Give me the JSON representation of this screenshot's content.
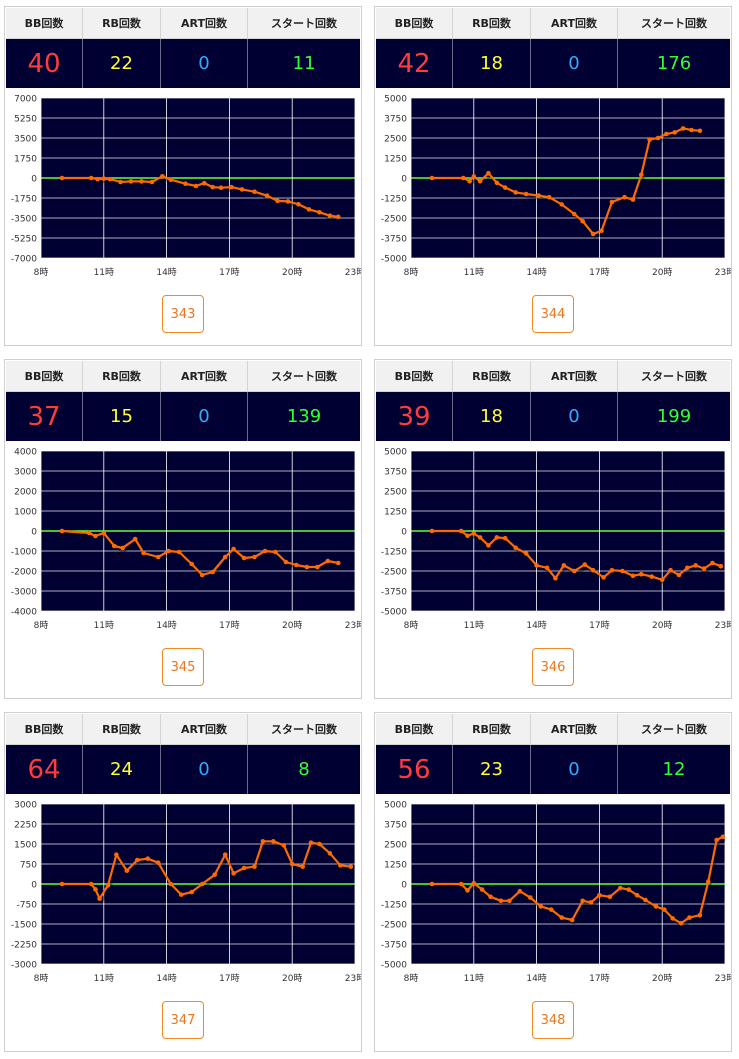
{
  "headers": {
    "bb": "BB回数",
    "rb": "RB回数",
    "art": "ART回数",
    "start": "スタート回数"
  },
  "colors": {
    "plot_bg": "#000033",
    "line": "#ff6a00",
    "zero": "#66ff33",
    "grid": "#ffffff"
  },
  "machines": [
    {
      "number": "343",
      "bb": "40",
      "rb": "22",
      "art": "0",
      "start": "11",
      "chart_data": {
        "type": "line",
        "x_ticks": [
          "8時",
          "11時",
          "14時",
          "17時",
          "20時",
          "23時"
        ],
        "y_ticks": [
          "7000",
          "5250",
          "3500",
          "1750",
          "0",
          "-1750",
          "-3500",
          "-5250",
          "-7000"
        ],
        "ylim": [
          -7000,
          7000
        ],
        "xlim": [
          8,
          23
        ],
        "x": [
          9,
          10.4,
          10.7,
          11,
          11.3,
          11.8,
          12.3,
          12.8,
          13.3,
          13.8,
          14.2,
          14.9,
          15.4,
          15.8,
          16.2,
          16.6,
          17.1,
          17.6,
          18.2,
          18.8,
          19.3,
          19.8,
          20.3,
          20.8,
          21.3,
          21.8,
          22.2
        ],
        "y": [
          0,
          0,
          -100,
          -50,
          -100,
          -350,
          -300,
          -300,
          -350,
          150,
          -150,
          -500,
          -700,
          -450,
          -800,
          -850,
          -800,
          -1000,
          -1200,
          -1550,
          -2000,
          -2050,
          -2300,
          -2750,
          -3000,
          -3300,
          -3400
        ]
      }
    },
    {
      "number": "344",
      "bb": "42",
      "rb": "18",
      "art": "0",
      "start": "176",
      "chart_data": {
        "type": "line",
        "x_ticks": [
          "8時",
          "11時",
          "14時",
          "17時",
          "20時",
          "23時"
        ],
        "y_ticks": [
          "5000",
          "3750",
          "2500",
          "1250",
          "0",
          "-1250",
          "-2500",
          "-3750",
          "-5000"
        ],
        "ylim": [
          -5000,
          5000
        ],
        "xlim": [
          8,
          23
        ],
        "x": [
          9,
          10.5,
          10.8,
          11,
          11.3,
          11.7,
          12.1,
          12.5,
          13,
          13.5,
          14.1,
          14.6,
          15.2,
          15.8,
          16.2,
          16.7,
          17.1,
          17.6,
          18.2,
          18.6,
          19,
          19.4,
          19.8,
          20.2,
          20.6,
          21,
          21.4,
          21.8
        ],
        "y": [
          0,
          0,
          -200,
          100,
          -200,
          300,
          -300,
          -600,
          -900,
          -1000,
          -1100,
          -1200,
          -1650,
          -2250,
          -2700,
          -3500,
          -3300,
          -1500,
          -1200,
          -1350,
          200,
          2400,
          2500,
          2750,
          2850,
          3100,
          3000,
          2950
        ]
      }
    },
    {
      "number": "345",
      "bb": "37",
      "rb": "15",
      "art": "0",
      "start": "139",
      "chart_data": {
        "type": "line",
        "x_ticks": [
          "8時",
          "11時",
          "14時",
          "17時",
          "20時",
          "23時"
        ],
        "y_ticks": [
          "4000",
          "3000",
          "2000",
          "1000",
          "0",
          "-1000",
          "-2000",
          "-3000",
          "-4000"
        ],
        "ylim": [
          -4000,
          4000
        ],
        "xlim": [
          8,
          23
        ],
        "x": [
          9,
          10.3,
          10.6,
          11,
          11.5,
          11.9,
          12.5,
          12.9,
          13.6,
          14.1,
          14.6,
          15.2,
          15.7,
          16.2,
          16.8,
          17.2,
          17.7,
          18.2,
          18.7,
          19.2,
          19.7,
          20.2,
          20.7,
          21.2,
          21.7,
          22.2
        ],
        "y": [
          0,
          -100,
          -250,
          -100,
          -750,
          -850,
          -400,
          -1100,
          -1300,
          -1000,
          -1050,
          -1650,
          -2200,
          -2050,
          -1300,
          -900,
          -1350,
          -1300,
          -1000,
          -1050,
          -1550,
          -1700,
          -1800,
          -1800,
          -1500,
          -1600
        ]
      }
    },
    {
      "number": "346",
      "bb": "39",
      "rb": "18",
      "art": "0",
      "start": "199",
      "chart_data": {
        "type": "line",
        "x_ticks": [
          "8時",
          "11時",
          "14時",
          "17時",
          "20時",
          "23時"
        ],
        "y_ticks": [
          "5000",
          "3750",
          "2500",
          "1250",
          "0",
          "-1250",
          "-2500",
          "-3750",
          "-5000"
        ],
        "ylim": [
          -5000,
          5000
        ],
        "xlim": [
          8,
          23
        ],
        "x": [
          9,
          10.4,
          10.7,
          11,
          11.3,
          11.7,
          12.1,
          12.5,
          13,
          13.5,
          14,
          14.5,
          14.9,
          15.3,
          15.8,
          16.3,
          16.7,
          17.2,
          17.6,
          18.1,
          18.6,
          19,
          19.5,
          20,
          20.4,
          20.8,
          21.2,
          21.6,
          22,
          22.4,
          22.8
        ],
        "y": [
          0,
          0,
          -300,
          -150,
          -400,
          -900,
          -400,
          -450,
          -1050,
          -1400,
          -2150,
          -2300,
          -2950,
          -2150,
          -2500,
          -2100,
          -2450,
          -2900,
          -2450,
          -2500,
          -2800,
          -2700,
          -2850,
          -3050,
          -2450,
          -2750,
          -2300,
          -2150,
          -2350,
          -2000,
          -2200
        ]
      }
    },
    {
      "number": "347",
      "bb": "64",
      "rb": "24",
      "art": "0",
      "start": "8",
      "chart_data": {
        "type": "line",
        "x_ticks": [
          "8時",
          "11時",
          "14時",
          "17時",
          "20時",
          "23時"
        ],
        "y_ticks": [
          "3000",
          "2250",
          "1500",
          "750",
          "0",
          "-750",
          "-1500",
          "-2250",
          "-3000"
        ],
        "ylim": [
          -3000,
          3000
        ],
        "xlim": [
          8,
          23
        ],
        "x": [
          9,
          10.4,
          10.6,
          10.8,
          11.2,
          11.6,
          12.1,
          12.6,
          13.1,
          13.6,
          14.2,
          14.7,
          15.2,
          15.7,
          16.3,
          16.8,
          17.2,
          17.7,
          18.2,
          18.6,
          19.1,
          19.6,
          20,
          20.5,
          20.9,
          21.3,
          21.8,
          22.3,
          22.8
        ],
        "y": [
          0,
          0,
          -200,
          -550,
          -50,
          1100,
          500,
          900,
          950,
          800,
          0,
          -400,
          -300,
          0,
          350,
          1100,
          400,
          600,
          650,
          1600,
          1600,
          1450,
          750,
          650,
          1550,
          1500,
          1150,
          700,
          650
        ]
      }
    },
    {
      "number": "348",
      "bb": "56",
      "rb": "23",
      "art": "0",
      "start": "12",
      "chart_data": {
        "type": "line",
        "x_ticks": [
          "8時",
          "11時",
          "14時",
          "17時",
          "20時",
          "23時"
        ],
        "y_ticks": [
          "5000",
          "3750",
          "2500",
          "1250",
          "0",
          "-1250",
          "-2500",
          "-3750",
          "-5000"
        ],
        "ylim": [
          -5000,
          5000
        ],
        "xlim": [
          8,
          23
        ],
        "x": [
          9,
          10.4,
          10.7,
          11,
          11.4,
          11.8,
          12.3,
          12.7,
          13.2,
          13.7,
          14.2,
          14.7,
          15.2,
          15.7,
          16.2,
          16.6,
          17,
          17.5,
          18,
          18.4,
          18.8,
          19.2,
          19.7,
          20.1,
          20.5,
          20.9,
          21.3,
          21.8,
          22.2,
          22.6,
          22.9
        ],
        "y": [
          0,
          0,
          -400,
          50,
          -350,
          -800,
          -1050,
          -1050,
          -450,
          -850,
          -1400,
          -1600,
          -2100,
          -2250,
          -1050,
          -1150,
          -700,
          -800,
          -250,
          -350,
          -700,
          -1000,
          -1400,
          -1600,
          -2150,
          -2450,
          -2100,
          -1950,
          150,
          2750,
          2950
        ]
      }
    }
  ]
}
